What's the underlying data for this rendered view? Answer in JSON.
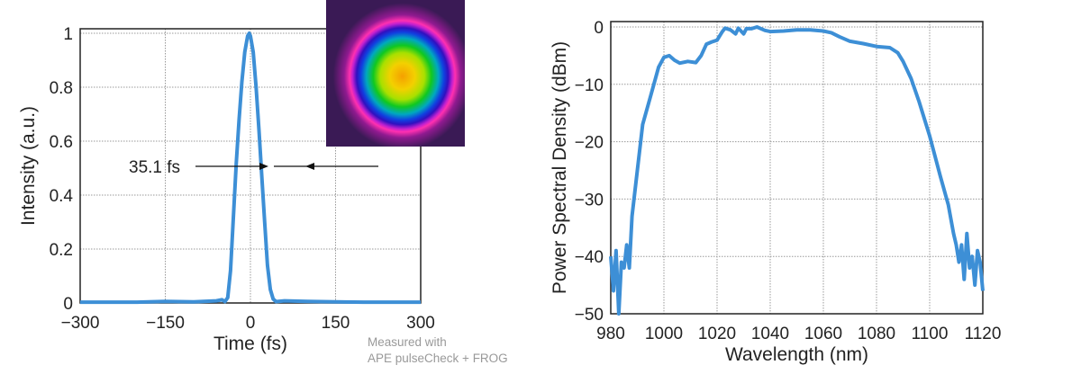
{
  "note": [
    "Measured with",
    "APE pulseCheck + FROG"
  ],
  "chart_data": [
    {
      "type": "line",
      "xlabel": "Time (fs)",
      "ylabel": "Intensity (a.u.)",
      "xlim": [
        -300,
        300
      ],
      "ylim": [
        0,
        1
      ],
      "xticks": [
        "−300",
        "−150",
        "0",
        "150",
        "300"
      ],
      "xtick_values": [
        -300,
        -150,
        0,
        150,
        300
      ],
      "yticks": [
        "0",
        "0.2",
        "0.4",
        "0.6",
        "0.8",
        "1"
      ],
      "ytick_values": [
        0,
        0.2,
        0.4,
        0.6,
        0.8,
        1
      ],
      "grid": true,
      "annotation": "35.1 fs",
      "color": "#3d8fd6",
      "x": [
        -300,
        -200,
        -150,
        -100,
        -60,
        -50,
        -45,
        -40,
        -35,
        -30,
        -25,
        -20,
        -15,
        -10,
        -5,
        -2,
        0,
        5,
        10,
        15,
        20,
        25,
        30,
        35,
        40,
        45,
        60,
        100,
        150,
        200,
        300
      ],
      "y": [
        0.003,
        0.003,
        0.006,
        0.004,
        0.008,
        0.012,
        0.005,
        0.02,
        0.12,
        0.32,
        0.52,
        0.68,
        0.82,
        0.93,
        0.99,
        1.0,
        0.99,
        0.93,
        0.8,
        0.64,
        0.47,
        0.3,
        0.14,
        0.05,
        0.015,
        0.005,
        0.008,
        0.006,
        0.004,
        0.003,
        0.003
      ]
    },
    {
      "type": "line",
      "xlabel": "Wavelength (nm)",
      "ylabel": "Power Spectral Density (dBm)",
      "xlim": [
        980,
        1120
      ],
      "ylim": [
        -50,
        0
      ],
      "xticks": [
        "980",
        "1000",
        "1020",
        "1040",
        "1060",
        "1080",
        "1100",
        "1120"
      ],
      "xtick_values": [
        980,
        1000,
        1020,
        1040,
        1060,
        1080,
        1100,
        1120
      ],
      "yticks": [
        "−50",
        "−40",
        "−30",
        "−20",
        "−10",
        "0"
      ],
      "ytick_values": [
        -50,
        -40,
        -30,
        -20,
        -10,
        0
      ],
      "grid": true,
      "color": "#3d8fd6",
      "x": [
        980,
        981,
        982,
        983,
        984,
        985,
        986,
        987,
        988,
        990,
        992,
        995,
        998,
        1000,
        1002,
        1004,
        1006,
        1009,
        1012,
        1014,
        1016,
        1018,
        1020,
        1022,
        1023,
        1025,
        1027,
        1028,
        1030,
        1031,
        1033,
        1035,
        1038,
        1040,
        1045,
        1050,
        1055,
        1060,
        1063,
        1066,
        1070,
        1075,
        1080,
        1085,
        1088,
        1090,
        1093,
        1096,
        1100,
        1104,
        1107,
        1109,
        1110,
        1111,
        1112,
        1113,
        1114,
        1115,
        1116,
        1117,
        1118,
        1119,
        1120
      ],
      "y": [
        -40,
        -46,
        -39,
        -50,
        -41,
        -42,
        -38,
        -42,
        -33,
        -25,
        -17,
        -12,
        -7,
        -5.3,
        -5,
        -5.8,
        -6.3,
        -6,
        -6.2,
        -5,
        -3,
        -2.6,
        -2.3,
        -0.8,
        -0.2,
        -0.5,
        -1.2,
        -0.2,
        -1.2,
        -0.3,
        -0.3,
        0,
        -0.6,
        -0.8,
        -0.7,
        -0.5,
        -0.5,
        -0.7,
        -1,
        -1.7,
        -2.5,
        -2.9,
        -3.4,
        -3.6,
        -4.5,
        -6,
        -9,
        -13,
        -19,
        -26,
        -31,
        -36,
        -38,
        -41,
        -38,
        -44,
        -36,
        -42,
        -40,
        -45,
        -39,
        -41,
        -46
      ]
    }
  ]
}
